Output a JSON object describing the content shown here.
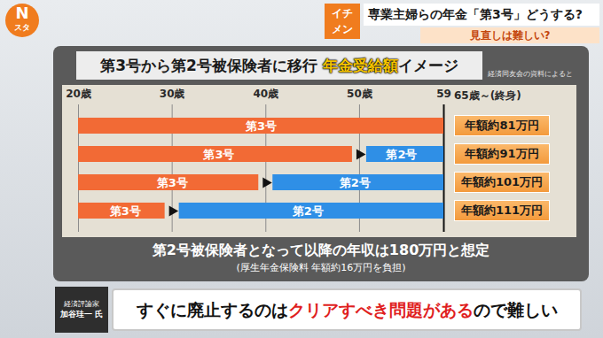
{
  "header": {
    "logo": [
      "N",
      "スタ"
    ],
    "tag": "イチメン",
    "headline": "専業主婦らの年金「第3号」どうする?",
    "subheadline": "見直しは難しい?"
  },
  "chart_data": {
    "type": "bar",
    "orientation": "horizontal",
    "title": "第3号から第2号被保険者に移行 年金受給額イメージ",
    "title_emphasis": "年金受給額",
    "source": "経済同友会の資料によると",
    "xlim": [
      20,
      59
    ],
    "xticks": [
      {
        "value": 20,
        "label": "20歳"
      },
      {
        "value": 30,
        "label": "30歳"
      },
      {
        "value": 40,
        "label": "40歳"
      },
      {
        "value": 50,
        "label": "50歳"
      },
      59
    ],
    "grid": true,
    "tick_labels": "x",
    "categories": [
      null,
      null,
      null,
      null
    ],
    "series": [
      {
        "name": "第3号",
        "color": "#f26a35",
        "values": [
          [
            20,
            59
          ],
          [
            20,
            50
          ],
          [
            20,
            40
          ],
          [
            20,
            30
          ]
        ]
      },
      {
        "name": "第2号",
        "color": "#2f8fe6",
        "values": [
          null,
          [
            50,
            59
          ],
          [
            40,
            59
          ],
          [
            30,
            59
          ]
        ]
      }
    ],
    "annuity": {
      "header": "65歳～(終身)",
      "labels": [
        "年額約81万円",
        "年額約91万円",
        "年額約101万円",
        "年額約111万円"
      ]
    }
  },
  "notes": [
    "第2号被保険者となって以降の年収は180万円と想定",
    "(厚生年金保険料 年額約16万円を負担)"
  ],
  "commentator": {
    "role": "経済評論家",
    "name": "加谷珪一 氏",
    "quote": "すぐに廃止するのはクリアすべき問題があるので難しい",
    "quote_emphasis": "クリアすべき問題がある"
  }
}
